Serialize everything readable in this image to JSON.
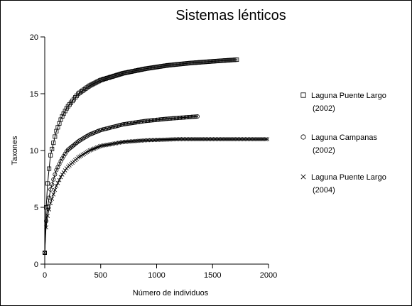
{
  "chart_data": {
    "type": "line",
    "title": "Sistemas lénticos",
    "xlabel": "Número de individuos",
    "ylabel": "Taxones",
    "xlim": [
      0,
      2000
    ],
    "ylim": [
      0,
      20
    ],
    "x_ticks": [
      0,
      500,
      1000,
      1500,
      2000
    ],
    "y_ticks": [
      0,
      5,
      10,
      15,
      20
    ],
    "grid": false,
    "legend_position": "right",
    "series": [
      {
        "legend_line1": "Laguna Puente Largo",
        "legend_line2": "(2002)",
        "marker": "square",
        "points": [
          [
            0,
            1
          ],
          [
            10,
            4.5
          ],
          [
            25,
            7
          ],
          [
            50,
            9.5
          ],
          [
            100,
            11.6
          ],
          [
            150,
            12.9
          ],
          [
            200,
            13.8
          ],
          [
            300,
            15
          ],
          [
            400,
            15.7
          ],
          [
            500,
            16.2
          ],
          [
            700,
            16.8
          ],
          [
            900,
            17.2
          ],
          [
            1100,
            17.5
          ],
          [
            1300,
            17.7
          ],
          [
            1500,
            17.85
          ],
          [
            1720,
            18
          ]
        ]
      },
      {
        "legend_line1": "Laguna Campanas",
        "legend_line2": "(2002)",
        "marker": "circle",
        "points": [
          [
            0,
            1
          ],
          [
            10,
            3.5
          ],
          [
            25,
            5
          ],
          [
            50,
            6.5
          ],
          [
            100,
            8.2
          ],
          [
            150,
            9.2
          ],
          [
            200,
            10
          ],
          [
            300,
            10.8
          ],
          [
            400,
            11.4
          ],
          [
            500,
            11.8
          ],
          [
            700,
            12.3
          ],
          [
            900,
            12.6
          ],
          [
            1100,
            12.8
          ],
          [
            1370,
            13
          ]
        ]
      },
      {
        "legend_line1": "Laguna Puente Largo",
        "legend_line2": "(2004)",
        "marker": "cross",
        "points": [
          [
            0,
            1
          ],
          [
            10,
            3
          ],
          [
            25,
            4.2
          ],
          [
            50,
            5.3
          ],
          [
            100,
            6.8
          ],
          [
            150,
            7.8
          ],
          [
            200,
            8.5
          ],
          [
            300,
            9.4
          ],
          [
            400,
            10
          ],
          [
            500,
            10.4
          ],
          [
            700,
            10.75
          ],
          [
            900,
            10.9
          ],
          [
            1200,
            11
          ],
          [
            1600,
            11
          ],
          [
            2000,
            11
          ]
        ]
      }
    ]
  }
}
